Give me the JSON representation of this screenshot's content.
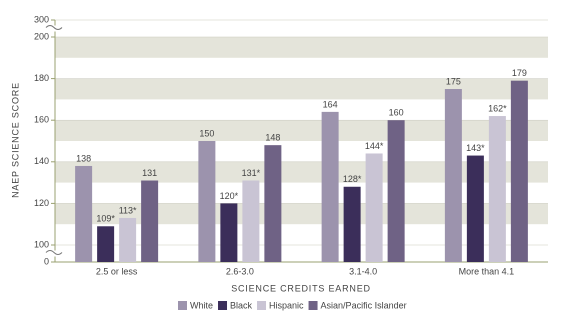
{
  "chart_data": {
    "type": "bar",
    "x_label": "SCIENCE CREDITS EARNED",
    "y_label": "NAEP SCIENCE SCORE",
    "categories": [
      "2.5 or less",
      "2.6-3.0",
      "3.1-4.0",
      "More than 4.1"
    ],
    "series": [
      {
        "name": "White",
        "color": "#9c93ad",
        "values": [
          138,
          150,
          164,
          175
        ]
      },
      {
        "name": "Black",
        "color": "#3b2e5a",
        "values": [
          109,
          120,
          128,
          143
        ],
        "value_labels": [
          "109*",
          "120*",
          "128*",
          "143*"
        ]
      },
      {
        "name": "Hispanic",
        "color": "#c9c4d4",
        "values": [
          113,
          131,
          144,
          162
        ],
        "value_labels": [
          "113*",
          "131*",
          "144*",
          "162*"
        ]
      },
      {
        "name": "Asian/Pacific Islander",
        "color": "#6f6285",
        "values": [
          131,
          148,
          160,
          179
        ]
      }
    ],
    "ylim": [
      0,
      300
    ],
    "ybreaks": [
      100,
      200
    ],
    "yticks": [
      0,
      100,
      120,
      140,
      160,
      180,
      200,
      300
    ],
    "grid": true
  }
}
